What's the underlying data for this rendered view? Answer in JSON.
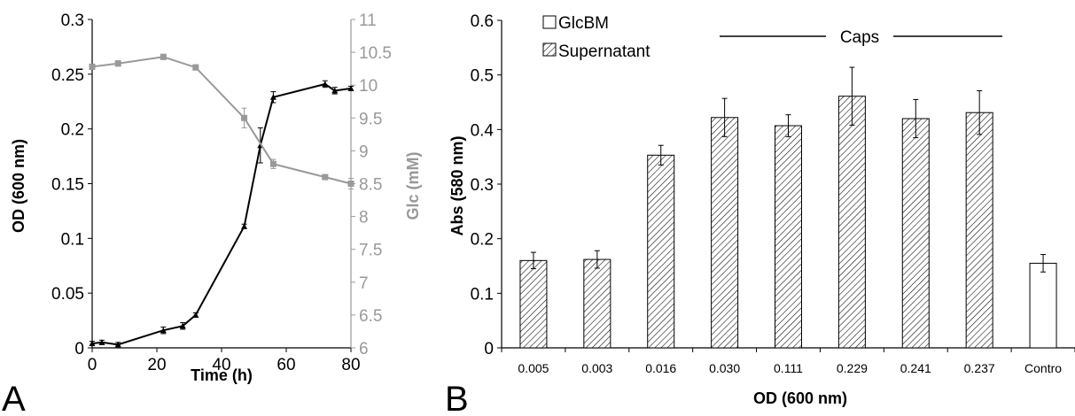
{
  "chart_data": [
    {
      "panel": "A",
      "type": "line",
      "xlabel": "Time (h)",
      "ylabel": "OD (600 nm)",
      "y2label": "Glc (mM)",
      "xlim": [
        0,
        80
      ],
      "ylim": [
        0,
        0.3
      ],
      "y2lim": [
        6,
        11
      ],
      "x_ticks": [
        "0",
        "20",
        "40",
        "60",
        "80"
      ],
      "y_ticks": [
        "0",
        "0.05",
        "0.1",
        "0.15",
        "0.2",
        "0.25",
        "0.3"
      ],
      "y2_ticks": [
        "6",
        "6.5",
        "7",
        "7.5",
        "8",
        "8.5",
        "9",
        "9.5",
        "10",
        "10.5",
        "11"
      ],
      "grid": false,
      "series": [
        {
          "axis": "left",
          "color": "#000000",
          "marker": "triangle",
          "x": [
            0,
            3,
            8,
            22,
            28,
            32,
            47,
            52,
            56,
            72,
            75,
            80
          ],
          "y": [
            0.004,
            0.005,
            0.003,
            0.016,
            0.02,
            0.03,
            0.111,
            0.185,
            0.229,
            0.241,
            0.235,
            0.237
          ],
          "error": [
            0.002,
            0.002,
            0.002,
            0.003,
            0.003,
            0.002,
            0.002,
            0.016,
            0.005,
            0.003,
            0.003,
            0.002
          ]
        },
        {
          "axis": "right",
          "color": "#999999",
          "marker": "square",
          "x": [
            0,
            8,
            22,
            32,
            47,
            56,
            72,
            80
          ],
          "y": [
            10.28,
            10.33,
            10.43,
            10.27,
            9.5,
            8.8,
            8.6,
            8.5
          ],
          "error": [
            0.04,
            0.04,
            0.04,
            0.04,
            0.15,
            0.07,
            0.03,
            0.08
          ]
        }
      ]
    },
    {
      "panel": "B",
      "type": "bar",
      "xlabel": "OD (600 nm)",
      "ylabel": "Abs (580 nm)",
      "ylim": [
        0,
        0.6
      ],
      "y_ticks": [
        "0",
        "0.1",
        "0.2",
        "0.3",
        "0.4",
        "0.5",
        "0.6"
      ],
      "categories": [
        "0.005",
        "0.003",
        "0.016",
        "0.030",
        "0.111",
        "0.229",
        "0.241",
        "0.237",
        "Contro"
      ],
      "values": [
        0.16,
        0.162,
        0.353,
        0.422,
        0.407,
        0.461,
        0.42,
        0.431,
        0.155
      ],
      "errors": [
        0.015,
        0.016,
        0.018,
        0.035,
        0.02,
        0.053,
        0.035,
        0.04,
        0.016
      ],
      "fills": [
        "hatch",
        "hatch",
        "hatch",
        "hatch",
        "hatch",
        "hatch",
        "hatch",
        "hatch",
        "white"
      ],
      "legend": [
        {
          "label": "GlcBM",
          "fill": "white"
        },
        {
          "label": "Supernatant",
          "fill": "hatch"
        }
      ],
      "legend_position": "top-left",
      "bracket_label": "Caps",
      "grid": false
    }
  ],
  "panel_labels": {
    "a": "A",
    "b": "B"
  },
  "colors": {
    "ink": "#000000",
    "glucose": "#999999"
  }
}
